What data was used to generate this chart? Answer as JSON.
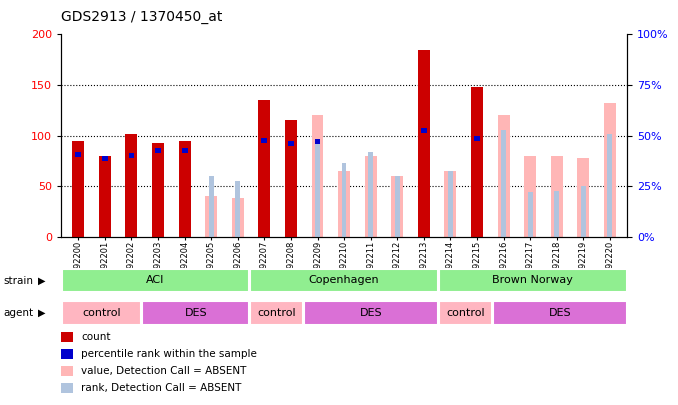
{
  "title": "GDS2913 / 1370450_at",
  "samples": [
    "GSM92200",
    "GSM92201",
    "GSM92202",
    "GSM92203",
    "GSM92204",
    "GSM92205",
    "GSM92206",
    "GSM92207",
    "GSM92208",
    "GSM92209",
    "GSM92210",
    "GSM92211",
    "GSM92212",
    "GSM92213",
    "GSM92214",
    "GSM92215",
    "GSM92216",
    "GSM92217",
    "GSM92218",
    "GSM92219",
    "GSM92220"
  ],
  "count": [
    95,
    80,
    102,
    93,
    95,
    null,
    null,
    135,
    115,
    null,
    null,
    null,
    null,
    185,
    null,
    148,
    null,
    null,
    null,
    null,
    null
  ],
  "percentile": [
    84,
    80,
    83,
    88,
    88,
    null,
    null,
    98,
    95,
    97,
    null,
    null,
    null,
    108,
    null,
    100,
    null,
    null,
    null,
    null,
    null
  ],
  "value_absent": [
    null,
    null,
    null,
    null,
    null,
    40,
    38,
    null,
    null,
    120,
    65,
    80,
    60,
    null,
    65,
    null,
    120,
    80,
    80,
    78,
    132
  ],
  "rank_absent": [
    null,
    null,
    null,
    null,
    null,
    60,
    55,
    null,
    null,
    96,
    73,
    84,
    60,
    null,
    65,
    null,
    106,
    44,
    45,
    50,
    102
  ],
  "strain_groups": [
    {
      "label": "ACI",
      "start": 0,
      "end": 7,
      "color": "#90ee90"
    },
    {
      "label": "Copenhagen",
      "start": 7,
      "end": 14,
      "color": "#90ee90"
    },
    {
      "label": "Brown Norway",
      "start": 14,
      "end": 21,
      "color": "#90ee90"
    }
  ],
  "agent_groups": [
    {
      "label": "control",
      "start": 0,
      "end": 3,
      "color": "#ffb6c1"
    },
    {
      "label": "DES",
      "start": 3,
      "end": 7,
      "color": "#da70d6"
    },
    {
      "label": "control",
      "start": 7,
      "end": 9,
      "color": "#ffb6c1"
    },
    {
      "label": "DES",
      "start": 9,
      "end": 14,
      "color": "#da70d6"
    },
    {
      "label": "control",
      "start": 14,
      "end": 16,
      "color": "#ffb6c1"
    },
    {
      "label": "DES",
      "start": 16,
      "end": 21,
      "color": "#da70d6"
    }
  ],
  "ylim_left": [
    0,
    200
  ],
  "ylim_right": [
    0,
    100
  ],
  "yticks_left": [
    0,
    50,
    100,
    150,
    200
  ],
  "yticks_right": [
    0,
    25,
    50,
    75,
    100
  ],
  "count_color": "#cc0000",
  "percentile_color": "#0000cc",
  "value_absent_color": "#ffb6b6",
  "rank_absent_color": "#b0c4de",
  "plot_bg": "#ffffff"
}
